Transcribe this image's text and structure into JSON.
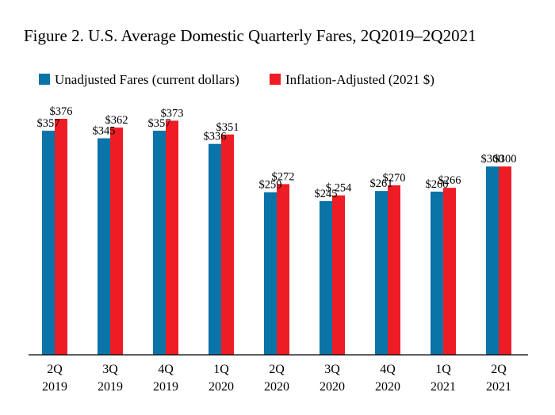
{
  "chart_data": {
    "type": "bar",
    "title": "Figure 2. U.S. Average Domestic Quarterly Fares, 2Q2019–2Q2021",
    "xlabel": "",
    "ylabel": "",
    "ylim": [
      0,
      400
    ],
    "grid": false,
    "legend_position": "top-left",
    "categories": [
      [
        "2Q",
        "2019"
      ],
      [
        "3Q",
        "2019"
      ],
      [
        "4Q",
        "2019"
      ],
      [
        "1Q",
        "2020"
      ],
      [
        "2Q",
        "2020"
      ],
      [
        "3Q",
        "2020"
      ],
      [
        "4Q",
        "2020"
      ],
      [
        "1Q",
        "2021"
      ],
      [
        "2Q",
        "2021"
      ]
    ],
    "series": [
      {
        "name": "Unadjusted Fares (current dollars)",
        "color": "#0a73a8",
        "values": [
          357,
          345,
          357,
          336,
          259,
          245,
          261,
          260,
          300
        ],
        "labels": [
          "$357",
          "$345",
          "$357",
          "$336",
          "$259",
          "$245",
          "$261",
          "$260",
          "$300"
        ]
      },
      {
        "name": "Inflation-Adjusted (2021 $)",
        "color": "#ee1c25",
        "values": [
          376,
          362,
          373,
          351,
          272,
          254,
          270,
          266,
          300
        ],
        "labels": [
          "$376",
          "$362",
          "$373",
          "$351",
          "$272",
          "$ 254",
          "$270",
          "$266",
          "$300"
        ]
      }
    ]
  }
}
